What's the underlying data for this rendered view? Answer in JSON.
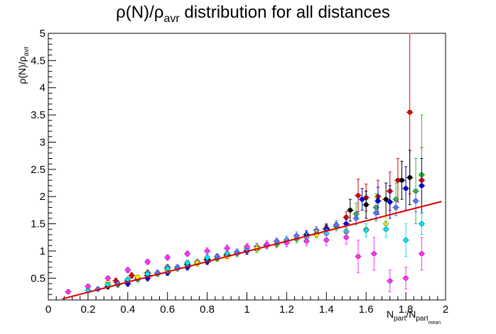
{
  "chart_data": {
    "type": "scatter",
    "title": {
      "main": "ρ(N)/ρ",
      "sub": "avr",
      "rest": " distribution for all distances"
    },
    "xlabel": {
      "main": "N",
      "sub1": "part",
      "slash": "/N",
      "sub2": "part",
      "subsub": "mean"
    },
    "ylabel": {
      "main": "ρ(N)/ρ",
      "sub": "avr"
    },
    "xlim": [
      0,
      2
    ],
    "ylim": [
      0.1,
      5
    ],
    "x_ticks": [
      "0",
      "0.2",
      "0.4",
      "0.6",
      "0.8",
      "1",
      "1.2",
      "1.4",
      "1.6",
      "1.8",
      "2"
    ],
    "y_ticks": [
      "0.5",
      "1",
      "1.5",
      "2",
      "2.5",
      "3",
      "3.5",
      "4",
      "4.5",
      "5"
    ],
    "fit_line": {
      "color": "#e00000",
      "x": [
        0.07,
        1.98
      ],
      "y": [
        0.12,
        1.91
      ]
    },
    "series": [
      {
        "color": "#e00000",
        "x": [
          0.34,
          0.42,
          0.5,
          0.6,
          0.7,
          0.8,
          0.9,
          1.0,
          1.1,
          1.2,
          1.3,
          1.4,
          1.5,
          1.56,
          1.6,
          1.66,
          1.72,
          1.76,
          1.82,
          1.88
        ],
        "y": [
          0.45,
          0.55,
          0.6,
          0.7,
          0.78,
          0.85,
          0.92,
          1.0,
          1.1,
          1.2,
          1.3,
          1.42,
          1.62,
          2.02,
          1.98,
          2.0,
          2.1,
          2.3,
          3.55,
          2.3
        ],
        "err": [
          0.05,
          0.05,
          0.05,
          0.05,
          0.05,
          0.05,
          0.06,
          0.06,
          0.06,
          0.07,
          0.07,
          0.08,
          0.1,
          0.3,
          0.25,
          0.3,
          0.35,
          0.4,
          1.5,
          0.6
        ]
      },
      {
        "color": "#000000",
        "x": [
          0.3,
          0.4,
          0.5,
          0.6,
          0.7,
          0.8,
          0.9,
          1.0,
          1.1,
          1.2,
          1.3,
          1.4,
          1.52,
          1.6,
          1.7,
          1.78,
          1.82
        ],
        "y": [
          0.35,
          0.45,
          0.55,
          0.65,
          0.75,
          0.84,
          0.93,
          1.0,
          1.1,
          1.2,
          1.3,
          1.4,
          1.75,
          1.85,
          1.95,
          2.3,
          2.35
        ],
        "err": [
          0.05,
          0.05,
          0.05,
          0.05,
          0.05,
          0.05,
          0.06,
          0.06,
          0.06,
          0.07,
          0.07,
          0.08,
          0.2,
          0.25,
          0.3,
          0.35,
          0.5
        ]
      },
      {
        "color": "#33bb33",
        "x": [
          0.35,
          0.45,
          0.55,
          0.65,
          0.75,
          0.85,
          0.95,
          1.05,
          1.15,
          1.25,
          1.35,
          1.45,
          1.55,
          1.65,
          1.75,
          1.85,
          1.88
        ],
        "y": [
          0.38,
          0.48,
          0.58,
          0.68,
          0.77,
          0.86,
          0.95,
          1.03,
          1.12,
          1.22,
          1.32,
          1.45,
          1.68,
          1.8,
          1.95,
          2.1,
          2.4
        ],
        "err": [
          0.05,
          0.05,
          0.05,
          0.05,
          0.05,
          0.05,
          0.06,
          0.06,
          0.06,
          0.07,
          0.07,
          0.08,
          0.2,
          0.25,
          0.3,
          0.6,
          1.1
        ]
      },
      {
        "color": "#0000dd",
        "x": [
          0.4,
          0.5,
          0.6,
          0.7,
          0.8,
          0.9,
          1.0,
          1.1,
          1.2,
          1.3,
          1.4,
          1.5,
          1.58,
          1.66,
          1.72,
          1.8,
          1.88
        ],
        "y": [
          0.4,
          0.5,
          0.6,
          0.7,
          0.8,
          0.9,
          1.0,
          1.1,
          1.2,
          1.3,
          1.4,
          1.5,
          1.95,
          1.92,
          1.9,
          2.15,
          2.2
        ],
        "err": [
          0.05,
          0.05,
          0.05,
          0.05,
          0.05,
          0.05,
          0.06,
          0.06,
          0.06,
          0.07,
          0.07,
          0.08,
          0.2,
          0.25,
          0.3,
          0.4,
          0.5
        ]
      },
      {
        "color": "#5577ff",
        "x": [
          0.25,
          0.35,
          0.45,
          0.55,
          0.65,
          0.75,
          0.85,
          0.95,
          1.05,
          1.15,
          1.25,
          1.35,
          1.45,
          1.55,
          1.65,
          1.75,
          1.85
        ],
        "y": [
          0.3,
          0.4,
          0.5,
          0.6,
          0.7,
          0.8,
          0.9,
          0.98,
          1.08,
          1.18,
          1.28,
          1.38,
          1.48,
          1.6,
          1.7,
          1.8,
          1.92
        ],
        "err": [
          0.04,
          0.04,
          0.04,
          0.05,
          0.05,
          0.05,
          0.05,
          0.06,
          0.06,
          0.06,
          0.07,
          0.07,
          0.08,
          0.1,
          0.12,
          0.15,
          0.2
        ]
      },
      {
        "color": "#ffee00",
        "x": [
          0.3,
          0.45,
          0.6,
          0.75,
          0.9,
          1.05,
          1.2,
          1.35,
          1.5,
          1.6,
          1.7
        ],
        "y": [
          0.42,
          0.52,
          0.65,
          0.78,
          0.9,
          1.05,
          1.2,
          1.3,
          1.35,
          1.4,
          1.5
        ],
        "err": [
          0.04,
          0.04,
          0.05,
          0.05,
          0.05,
          0.06,
          0.06,
          0.07,
          0.08,
          0.1,
          0.12
        ]
      },
      {
        "color": "#00e5ff",
        "x": [
          0.2,
          0.3,
          0.4,
          0.5,
          0.6,
          0.7,
          0.8,
          0.9,
          1.0,
          1.1,
          1.2,
          1.3,
          1.4,
          1.5,
          1.6,
          1.7,
          1.8,
          1.88
        ],
        "y": [
          0.28,
          0.38,
          0.48,
          0.58,
          0.68,
          0.78,
          0.88,
          0.96,
          1.04,
          1.1,
          1.2,
          1.25,
          1.32,
          1.36,
          1.38,
          1.4,
          1.2,
          1.5
        ],
        "err": [
          0.04,
          0.04,
          0.04,
          0.05,
          0.05,
          0.05,
          0.05,
          0.06,
          0.06,
          0.06,
          0.07,
          0.07,
          0.08,
          0.1,
          0.12,
          0.15,
          0.3,
          0.2
        ]
      },
      {
        "color": "#ff33ff",
        "x": [
          0.1,
          0.2,
          0.3,
          0.4,
          0.5,
          0.6,
          0.7,
          0.8,
          0.9,
          1.0,
          1.1,
          1.2,
          1.3,
          1.4,
          1.5,
          1.56,
          1.64,
          1.72,
          1.8,
          1.88
        ],
        "y": [
          0.25,
          0.35,
          0.5,
          0.65,
          0.8,
          0.88,
          0.95,
          1.0,
          1.05,
          1.08,
          1.12,
          1.15,
          1.18,
          1.2,
          1.25,
          0.9,
          0.95,
          0.45,
          0.5,
          0.95
        ],
        "err": [
          0.04,
          0.04,
          0.04,
          0.05,
          0.05,
          0.05,
          0.05,
          0.06,
          0.06,
          0.06,
          0.07,
          0.07,
          0.08,
          0.1,
          0.12,
          0.3,
          0.3,
          0.2,
          0.2,
          0.3
        ]
      }
    ]
  }
}
